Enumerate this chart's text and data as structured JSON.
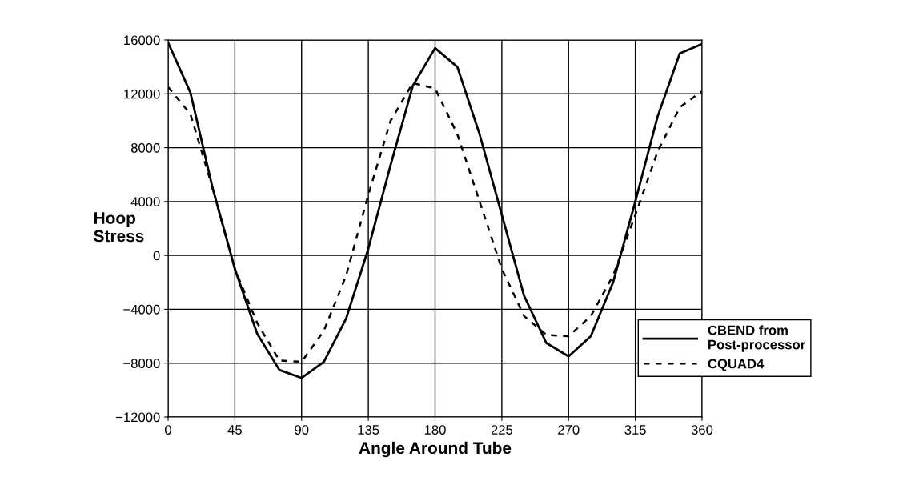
{
  "chart_data": {
    "type": "line",
    "xlabel": "Angle Around Tube",
    "ylabel": "Hoop\nStress",
    "x": [
      0,
      15,
      30,
      45,
      60,
      75,
      90,
      105,
      120,
      135,
      150,
      165,
      180,
      195,
      210,
      225,
      240,
      255,
      270,
      285,
      300,
      315,
      330,
      345,
      360
    ],
    "series": [
      {
        "name": "CBEND from\nPost-processor",
        "color": "#000000",
        "line_style": "solid",
        "values": [
          15800,
          12100,
          5000,
          -1000,
          -5800,
          -8500,
          -9100,
          -7900,
          -4700,
          500,
          6700,
          12600,
          15400,
          14000,
          9000,
          3000,
          -3000,
          -6500,
          -7500,
          -6000,
          -2000,
          4000,
          10300,
          15000,
          15700
        ]
      },
      {
        "name": "CQUAD4",
        "color": "#000000",
        "line_style": "dashed",
        "values": [
          12500,
          10500,
          5000,
          -1000,
          -5000,
          -7800,
          -7900,
          -5600,
          -1500,
          4500,
          10000,
          12800,
          12400,
          9000,
          4000,
          -1000,
          -4500,
          -5900,
          -6000,
          -4500,
          -1500,
          3000,
          7700,
          11000,
          12200
        ]
      }
    ],
    "xlim": [
      0,
      360
    ],
    "xticks": [
      0,
      45,
      90,
      135,
      180,
      225,
      270,
      315,
      360
    ],
    "ylim": [
      -12000,
      16000
    ],
    "yticks": [
      {
        "value": -12000,
        "label": "−12000"
      },
      {
        "value": -8000,
        "label": "−8000"
      },
      {
        "value": -4000,
        "label": "−4000"
      },
      0,
      4000,
      8000,
      12000,
      16000
    ],
    "grid": true,
    "legend": "bottom right"
  }
}
